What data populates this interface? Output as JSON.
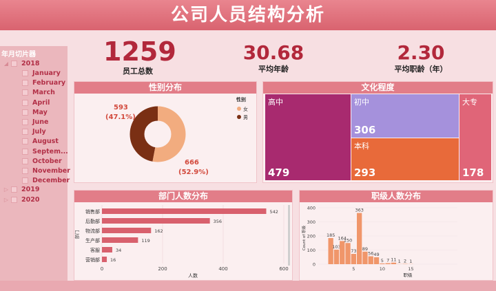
{
  "title": "公司人员结构分析",
  "kpis": {
    "total": {
      "value": "1259",
      "label": "员工总数"
    },
    "age": {
      "value": "30.68",
      "label": "平均年龄"
    },
    "tenure": {
      "value": "2.30",
      "label": "平均职龄（年）"
    }
  },
  "slicer": {
    "title": "年月切片器",
    "years": [
      "2018",
      "2019",
      "2020"
    ],
    "months": [
      "January",
      "February",
      "March",
      "April",
      "May",
      "June",
      "July",
      "August",
      "Septem...",
      "October",
      "November",
      "December"
    ]
  },
  "gender": {
    "title": "性别分布",
    "legend_title": "性别",
    "female_label": "女",
    "male_label": "男",
    "female_value": 666,
    "male_value": 593,
    "female_text": "666",
    "female_pct": "(52.9%)",
    "male_text": "593",
    "male_pct": "(47.1%)",
    "female_color": "#f2ac7f",
    "male_color": "#7a2f14"
  },
  "education": {
    "title": "文化程度",
    "items": [
      {
        "label": "高中",
        "value": "479",
        "color": "#a82a6f"
      },
      {
        "label": "初中",
        "value": "306",
        "color": "#a591dc"
      },
      {
        "label": "本科",
        "value": "293",
        "color": "#e86a3a"
      },
      {
        "label": "大专",
        "value": "178",
        "color": "#e06578"
      }
    ]
  },
  "dept": {
    "title": "部门人数分布",
    "xlabel": "人数",
    "ylabel": "部门",
    "ticks": [
      "0",
      "200",
      "400",
      "600"
    ],
    "categories": [
      "销售部",
      "后勤部",
      "物流部",
      "生产部",
      "客服",
      "营销部"
    ],
    "values": [
      542,
      356,
      162,
      119,
      34,
      16
    ],
    "labels": [
      "542",
      "356",
      "162",
      "119",
      "34",
      "16"
    ]
  },
  "level": {
    "title": "职级人数分布",
    "xlabel": "职级",
    "ylabel": "Count of 职级",
    "yticks": [
      "0",
      "100",
      "200",
      "300",
      "400"
    ],
    "xticks": [
      "5",
      "10",
      "15"
    ],
    "labels": [
      "185",
      "103",
      "164",
      "150",
      "73",
      "363",
      "89",
      "56",
      "49",
      "5",
      "7",
      "11",
      "1",
      "2",
      "1"
    ]
  },
  "chart_data": [
    {
      "type": "pie",
      "title": "性别分布",
      "categories": [
        "女",
        "男"
      ],
      "values": [
        666,
        593
      ]
    },
    {
      "type": "bar",
      "title": "部门人数分布",
      "categories": [
        "销售部",
        "后勤部",
        "物流部",
        "生产部",
        "客服",
        "营销部"
      ],
      "values": [
        542,
        356,
        162,
        119,
        34,
        16
      ],
      "xlabel": "人数",
      "ylabel": "部门",
      "xlim": [
        0,
        600
      ]
    },
    {
      "type": "bar",
      "title": "职级人数分布",
      "x": [
        1,
        2,
        3,
        4,
        5,
        6,
        7,
        8,
        9,
        10,
        11,
        12,
        13,
        14,
        15
      ],
      "values": [
        185,
        103,
        164,
        150,
        73,
        363,
        89,
        56,
        49,
        5,
        7,
        11,
        1,
        2,
        1
      ],
      "xlabel": "职级",
      "ylabel": "Count of 职级",
      "ylim": [
        0,
        400
      ]
    },
    {
      "type": "table",
      "title": "文化程度",
      "categories": [
        "高中",
        "初中",
        "本科",
        "大专"
      ],
      "values": [
        479,
        306,
        293,
        178
      ]
    }
  ]
}
